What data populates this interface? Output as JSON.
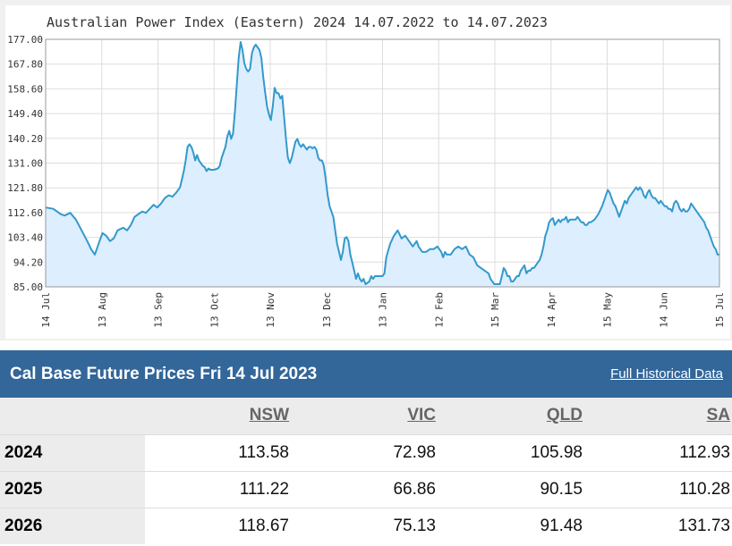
{
  "chart_data": {
    "type": "area",
    "title": "Australian Power Index (Eastern) 2024 14.07.2022 to 14.07.2023",
    "ylim": [
      85.0,
      177.0
    ],
    "yticks": [
      "177.00",
      "167.80",
      "158.60",
      "149.40",
      "140.20",
      "131.00",
      "121.80",
      "112.60",
      "103.40",
      "94.20",
      "85.00"
    ],
    "xticks": [
      "14 Jul",
      "13 Aug",
      "13 Sep",
      "13 Oct",
      "13 Nov",
      "13 Dec",
      "13 Jan",
      "12 Feb",
      "15 Mar",
      "14 Apr",
      "15 May",
      "14 Jun",
      "15 Jul"
    ],
    "grid": true,
    "colors": {
      "line": "#3399cc",
      "fill": "#ddeeff"
    },
    "series": [
      {
        "values": [
          [
            0,
            114.5
          ],
          [
            4,
            114
          ],
          [
            8,
            112
          ],
          [
            10,
            111.5
          ],
          [
            13,
            112.5
          ],
          [
            16,
            110
          ],
          [
            19,
            106
          ],
          [
            22,
            102
          ],
          [
            24,
            99
          ],
          [
            26,
            97
          ],
          [
            28,
            101
          ],
          [
            30,
            105
          ],
          [
            32,
            104
          ],
          [
            34,
            102
          ],
          [
            36,
            103
          ],
          [
            38,
            106
          ],
          [
            41,
            107
          ],
          [
            43,
            106
          ],
          [
            45,
            108
          ],
          [
            47,
            111
          ],
          [
            49,
            112
          ],
          [
            51,
            113
          ],
          [
            53,
            112.5
          ],
          [
            55,
            114
          ],
          [
            57,
            115.5
          ],
          [
            59,
            114.5
          ],
          [
            61,
            116
          ],
          [
            63,
            118
          ],
          [
            65,
            119
          ],
          [
            67,
            118.5
          ],
          [
            69,
            120
          ],
          [
            71,
            122
          ],
          [
            72,
            125
          ],
          [
            73,
            128
          ],
          [
            74,
            132
          ],
          [
            75,
            137
          ],
          [
            76,
            138
          ],
          [
            77,
            137
          ],
          [
            78,
            135
          ],
          [
            79,
            132
          ],
          [
            80,
            134
          ],
          [
            81,
            132
          ],
          [
            82,
            131
          ],
          [
            83,
            130
          ],
          [
            84,
            129.5
          ],
          [
            85,
            128
          ],
          [
            86,
            129
          ],
          [
            87,
            128.5
          ],
          [
            89,
            128.5
          ],
          [
            91,
            129
          ],
          [
            92,
            130
          ],
          [
            93,
            133
          ],
          [
            94,
            135
          ],
          [
            95,
            137
          ],
          [
            96,
            141
          ],
          [
            97,
            143
          ],
          [
            98,
            140
          ],
          [
            99,
            142
          ],
          [
            100,
            150
          ],
          [
            101,
            160
          ],
          [
            102,
            170
          ],
          [
            103,
            176
          ],
          [
            104,
            173
          ],
          [
            105,
            168
          ],
          [
            106,
            166
          ],
          [
            107,
            165
          ],
          [
            108,
            166
          ],
          [
            109,
            172
          ],
          [
            110,
            174
          ],
          [
            111,
            175
          ],
          [
            112,
            174
          ],
          [
            113,
            173
          ],
          [
            114,
            170
          ],
          [
            115,
            163
          ],
          [
            116,
            157
          ],
          [
            117,
            152
          ],
          [
            118,
            149
          ],
          [
            119,
            147
          ],
          [
            120,
            152
          ],
          [
            121,
            159
          ],
          [
            122,
            157
          ],
          [
            123,
            157
          ],
          [
            124,
            155
          ],
          [
            125,
            156
          ],
          [
            126,
            148
          ],
          [
            127,
            140
          ],
          [
            128,
            133
          ],
          [
            129,
            131
          ],
          [
            130,
            133
          ],
          [
            131,
            136
          ],
          [
            132,
            139
          ],
          [
            133,
            140
          ],
          [
            134,
            138
          ],
          [
            135,
            137
          ],
          [
            136,
            138
          ],
          [
            137,
            137
          ],
          [
            138,
            136
          ],
          [
            139,
            137
          ],
          [
            140,
            137
          ],
          [
            141,
            136.5
          ],
          [
            142,
            137
          ],
          [
            143,
            136
          ],
          [
            144,
            133
          ],
          [
            145,
            132
          ],
          [
            146,
            132
          ],
          [
            147,
            130
          ],
          [
            148,
            125
          ],
          [
            149,
            119
          ],
          [
            150,
            115
          ],
          [
            151,
            113
          ],
          [
            152,
            111
          ],
          [
            153,
            106
          ],
          [
            154,
            101
          ],
          [
            155,
            98
          ],
          [
            156,
            95
          ],
          [
            157,
            98
          ],
          [
            158,
            103
          ],
          [
            159,
            103.5
          ],
          [
            160,
            102
          ],
          [
            161,
            97
          ],
          [
            162,
            94
          ],
          [
            163,
            91
          ],
          [
            164,
            88
          ],
          [
            165,
            90
          ],
          [
            166,
            88
          ],
          [
            167,
            87
          ],
          [
            168,
            88
          ],
          [
            169,
            86
          ],
          [
            170,
            86.5
          ],
          [
            171,
            87
          ],
          [
            172,
            89
          ],
          [
            173,
            88
          ],
          [
            174,
            89
          ],
          [
            176,
            89
          ],
          [
            178,
            89
          ],
          [
            179,
            90
          ],
          [
            180,
            96
          ],
          [
            182,
            101
          ],
          [
            184,
            104
          ],
          [
            186,
            106
          ],
          [
            188,
            103
          ],
          [
            190,
            104
          ],
          [
            192,
            102
          ],
          [
            194,
            100
          ],
          [
            196,
            102
          ],
          [
            197,
            100
          ],
          [
            199,
            98
          ],
          [
            201,
            98
          ],
          [
            203,
            99
          ],
          [
            205,
            99
          ],
          [
            207,
            100
          ],
          [
            209,
            98
          ],
          [
            210,
            96
          ],
          [
            211,
            98
          ],
          [
            212,
            97
          ],
          [
            214,
            97
          ],
          [
            216,
            99
          ],
          [
            218,
            100
          ],
          [
            220,
            99
          ],
          [
            222,
            100
          ],
          [
            224,
            97
          ],
          [
            226,
            96
          ],
          [
            228,
            93
          ],
          [
            230,
            92
          ],
          [
            232,
            91
          ],
          [
            234,
            90
          ],
          [
            235,
            88
          ],
          [
            236,
            87
          ],
          [
            237,
            86
          ],
          [
            238,
            86
          ],
          [
            240,
            86
          ],
          [
            241,
            89
          ],
          [
            242,
            92
          ],
          [
            243,
            91
          ],
          [
            244,
            89
          ],
          [
            245,
            89
          ],
          [
            246,
            87
          ],
          [
            247,
            87
          ],
          [
            248,
            88
          ],
          [
            249,
            89
          ],
          [
            250,
            89
          ],
          [
            251,
            91
          ],
          [
            252,
            92
          ],
          [
            253,
            93
          ],
          [
            254,
            90
          ],
          [
            255,
            91
          ],
          [
            256,
            91
          ],
          [
            257,
            92
          ],
          [
            258,
            92
          ],
          [
            259,
            93
          ],
          [
            260,
            94
          ],
          [
            261,
            95
          ],
          [
            262,
            97
          ],
          [
            263,
            100
          ],
          [
            264,
            104
          ],
          [
            265,
            106
          ],
          [
            266,
            109
          ],
          [
            267,
            110
          ],
          [
            268,
            110.5
          ],
          [
            269,
            108
          ],
          [
            270,
            109
          ],
          [
            271,
            110
          ],
          [
            272,
            109
          ],
          [
            273,
            110
          ],
          [
            274,
            110
          ],
          [
            275,
            111
          ],
          [
            276,
            109
          ],
          [
            277,
            110
          ],
          [
            278,
            110
          ],
          [
            279,
            110
          ],
          [
            280,
            110
          ],
          [
            281,
            111
          ],
          [
            282,
            110
          ],
          [
            283,
            109
          ],
          [
            284,
            109
          ],
          [
            285,
            108
          ],
          [
            286,
            108
          ],
          [
            287,
            109
          ],
          [
            288,
            109
          ],
          [
            290,
            110
          ],
          [
            292,
            112
          ],
          [
            294,
            115
          ],
          [
            296,
            119
          ],
          [
            297,
            121
          ],
          [
            298,
            120
          ],
          [
            299,
            118
          ],
          [
            300,
            116
          ],
          [
            301,
            115
          ],
          [
            302,
            113
          ],
          [
            303,
            111
          ],
          [
            304,
            113
          ],
          [
            305,
            115
          ],
          [
            306,
            117
          ],
          [
            307,
            116
          ],
          [
            308,
            118
          ],
          [
            309,
            119
          ],
          [
            310,
            120
          ],
          [
            311,
            121
          ],
          [
            312,
            122
          ],
          [
            313,
            121
          ],
          [
            314,
            122
          ],
          [
            315,
            121
          ],
          [
            316,
            119
          ],
          [
            317,
            118
          ],
          [
            318,
            120
          ],
          [
            319,
            121
          ],
          [
            320,
            119
          ],
          [
            321,
            118
          ],
          [
            322,
            118
          ],
          [
            323,
            117
          ],
          [
            324,
            116
          ],
          [
            325,
            117
          ],
          [
            326,
            116
          ],
          [
            327,
            115
          ],
          [
            328,
            115
          ],
          [
            329,
            114
          ],
          [
            330,
            114
          ],
          [
            331,
            113
          ],
          [
            332,
            116
          ],
          [
            333,
            117
          ],
          [
            334,
            116
          ],
          [
            335,
            114
          ],
          [
            336,
            113
          ],
          [
            337,
            114
          ],
          [
            338,
            113
          ],
          [
            339,
            113
          ],
          [
            340,
            114
          ],
          [
            341,
            116
          ],
          [
            342,
            115
          ],
          [
            343,
            114
          ],
          [
            344,
            113
          ],
          [
            345,
            112
          ],
          [
            346,
            111
          ],
          [
            347,
            110
          ],
          [
            348,
            109
          ],
          [
            349,
            107
          ],
          [
            350,
            106
          ],
          [
            351,
            104
          ],
          [
            352,
            102
          ],
          [
            353,
            100
          ],
          [
            354,
            99
          ],
          [
            355,
            97
          ],
          [
            356,
            97
          ]
        ]
      }
    ],
    "x_max": 356
  },
  "panel": {
    "title": "Cal Base Future Prices Fri 14 Jul 2023",
    "link": "Full Historical Data",
    "columns": [
      "NSW",
      "VIC",
      "QLD",
      "SA"
    ],
    "rows": [
      {
        "year": "2024",
        "values": [
          "113.58",
          "72.98",
          "105.98",
          "112.93"
        ]
      },
      {
        "year": "2025",
        "values": [
          "111.22",
          "66.86",
          "90.15",
          "110.28"
        ]
      },
      {
        "year": "2026",
        "values": [
          "118.67",
          "75.13",
          "91.48",
          "131.73"
        ]
      }
    ]
  }
}
